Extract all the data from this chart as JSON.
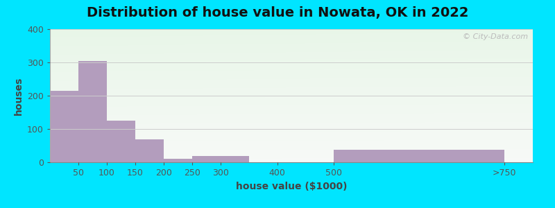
{
  "title": "Distribution of house value in Nowata, OK in 2022",
  "xlabel": "house value ($1000)",
  "ylabel": "houses",
  "bar_values": [
    215,
    305,
    125,
    68,
    10,
    18,
    0,
    38
  ],
  "bar_left_edges": [
    0,
    50,
    100,
    150,
    200,
    250,
    350,
    500
  ],
  "bar_widths": [
    50,
    50,
    50,
    50,
    50,
    100,
    150,
    300
  ],
  "bar_color": "#b39dbd",
  "background_outer": "#00e5ff",
  "ylim": [
    0,
    400
  ],
  "yticks": [
    0,
    100,
    200,
    300,
    400
  ],
  "xtick_labels": [
    "50",
    "100",
    "150",
    "200",
    "250",
    "300",
    "400",
    "500",
    ">750"
  ],
  "xtick_positions": [
    50,
    100,
    150,
    200,
    250,
    300,
    400,
    500,
    800
  ],
  "xlim": [
    0,
    850
  ],
  "title_fontsize": 14,
  "axis_label_fontsize": 10,
  "watermark": "© City-Data.com"
}
